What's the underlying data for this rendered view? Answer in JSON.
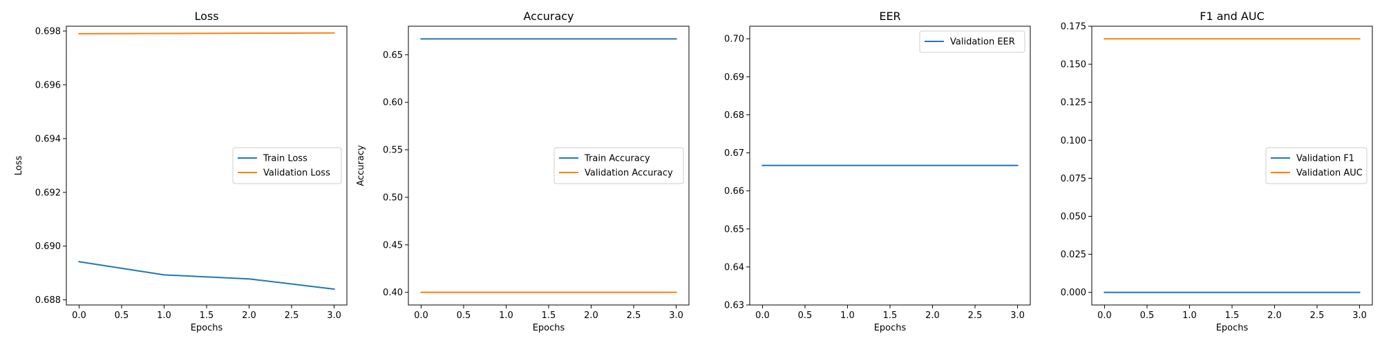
{
  "chart_data": [
    {
      "type": "line",
      "title": "Loss",
      "xlabel": "Epochs",
      "ylabel": "Loss",
      "x": [
        0,
        1,
        2,
        3
      ],
      "xticks": [
        "0.0",
        "0.5",
        "1.0",
        "1.5",
        "2.0",
        "2.5",
        "3.0"
      ],
      "xlim": [
        -0.15,
        3.15
      ],
      "yticks": [
        "0.688",
        "0.690",
        "0.692",
        "0.694",
        "0.696",
        "0.698"
      ],
      "ylim": [
        0.68781,
        0.69818
      ],
      "legend_position": "center-right",
      "series": [
        {
          "name": "Train Loss",
          "color": "#1f77b4",
          "values": [
            0.68942,
            0.68893,
            0.68878,
            0.6884
          ]
        },
        {
          "name": "Validation Loss",
          "color": "#ff7f0e",
          "values": [
            0.6979,
            0.69791,
            0.69792,
            0.69793
          ]
        }
      ]
    },
    {
      "type": "line",
      "title": "Accuracy",
      "xlabel": "Epochs",
      "ylabel": "Accuracy",
      "x": [
        0,
        1,
        2,
        3
      ],
      "xticks": [
        "0.0",
        "0.5",
        "1.0",
        "1.5",
        "2.0",
        "2.5",
        "3.0"
      ],
      "xlim": [
        -0.15,
        3.15
      ],
      "yticks": [
        "0.40",
        "0.45",
        "0.50",
        "0.55",
        "0.60",
        "0.65"
      ],
      "ylim": [
        0.3867,
        0.68
      ],
      "legend_position": "center-right",
      "series": [
        {
          "name": "Train Accuracy",
          "color": "#1f77b4",
          "values": [
            0.6667,
            0.6667,
            0.6667,
            0.6667
          ]
        },
        {
          "name": "Validation Accuracy",
          "color": "#ff7f0e",
          "values": [
            0.4,
            0.4,
            0.4,
            0.4
          ]
        }
      ]
    },
    {
      "type": "line",
      "title": "EER",
      "xlabel": "Epochs",
      "ylabel": "",
      "x": [
        0,
        1,
        2,
        3
      ],
      "xticks": [
        "0.0",
        "0.5",
        "1.0",
        "1.5",
        "2.0",
        "2.5",
        "3.0"
      ],
      "xlim": [
        -0.15,
        3.15
      ],
      "yticks": [
        "0.63",
        "0.64",
        "0.65",
        "0.66",
        "0.67",
        "0.68",
        "0.69",
        "0.70"
      ],
      "ylim": [
        0.63,
        0.7033
      ],
      "legend_position": "top-right",
      "series": [
        {
          "name": "Validation EER",
          "color": "#1f77b4",
          "values": [
            0.6667,
            0.6667,
            0.6667,
            0.6667
          ]
        }
      ]
    },
    {
      "type": "line",
      "title": "F1 and AUC",
      "xlabel": "Epochs",
      "ylabel": "",
      "x": [
        0,
        1,
        2,
        3
      ],
      "xticks": [
        "0.0",
        "0.5",
        "1.0",
        "1.5",
        "2.0",
        "2.5",
        "3.0"
      ],
      "xlim": [
        -0.15,
        3.15
      ],
      "yticks": [
        "0.000",
        "0.025",
        "0.050",
        "0.075",
        "0.100",
        "0.125",
        "0.150",
        "0.175"
      ],
      "ylim": [
        -0.0083,
        0.175
      ],
      "legend_position": "center-right",
      "series": [
        {
          "name": "Validation F1",
          "color": "#1f77b4",
          "values": [
            0,
            0,
            0,
            0
          ]
        },
        {
          "name": "Validation AUC",
          "color": "#ff7f0e",
          "values": [
            0.1667,
            0.1667,
            0.1667,
            0.1667
          ]
        }
      ]
    }
  ]
}
